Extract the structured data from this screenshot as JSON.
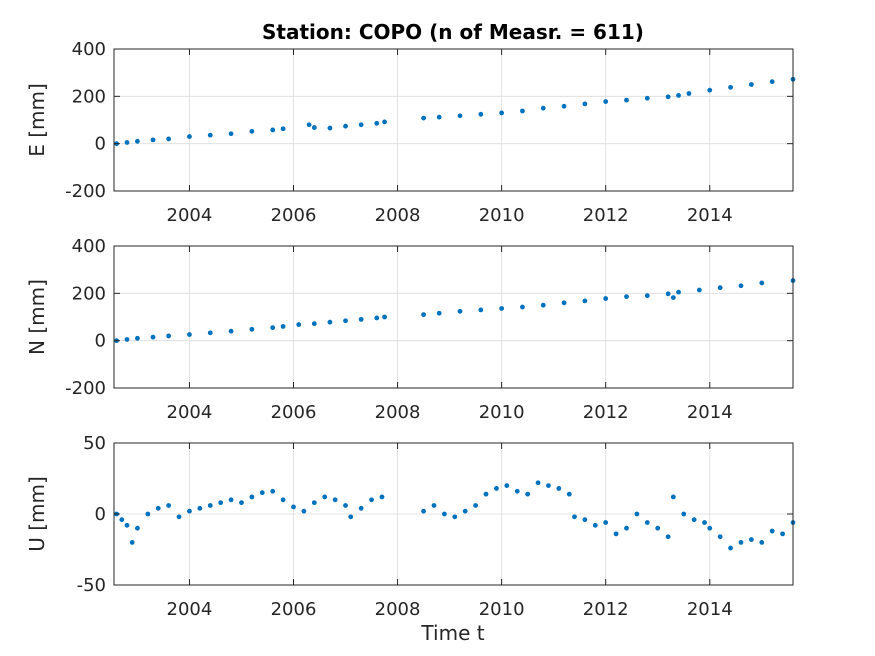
{
  "chart_data": {
    "title": "Station: COPO (n of Measr. = 611)",
    "xlabel": "Time t",
    "xlim": [
      2002.55,
      2015.6
    ],
    "xticks": [
      2004,
      2006,
      2008,
      2010,
      2012,
      2014
    ],
    "xtick_labels": [
      "2004",
      "2006",
      "2008",
      "2010",
      "2012",
      "2014"
    ],
    "grid": true,
    "marker_color": "#0072bd",
    "panels": [
      {
        "type": "scatter",
        "ylabel": "E [mm]",
        "ylim": [
          -200,
          400
        ],
        "yticks": [
          -200,
          0,
          200,
          400
        ],
        "ytick_labels": [
          "-200",
          "0",
          "200",
          "400"
        ],
        "points": [
          [
            2002.6,
            0
          ],
          [
            2002.8,
            5
          ],
          [
            2003.0,
            10
          ],
          [
            2003.3,
            16
          ],
          [
            2003.6,
            20
          ],
          [
            2004.0,
            30
          ],
          [
            2004.4,
            36
          ],
          [
            2004.8,
            42
          ],
          [
            2005.2,
            52
          ],
          [
            2005.6,
            58
          ],
          [
            2005.8,
            63
          ],
          [
            2006.3,
            80
          ],
          [
            2006.4,
            68
          ],
          [
            2006.7,
            66
          ],
          [
            2007.0,
            74
          ],
          [
            2007.3,
            80
          ],
          [
            2007.6,
            86
          ],
          [
            2007.75,
            92
          ],
          [
            2008.5,
            108
          ],
          [
            2008.8,
            112
          ],
          [
            2009.2,
            118
          ],
          [
            2009.6,
            124
          ],
          [
            2010.0,
            130
          ],
          [
            2010.4,
            138
          ],
          [
            2010.8,
            150
          ],
          [
            2011.2,
            158
          ],
          [
            2011.6,
            168
          ],
          [
            2012.0,
            178
          ],
          [
            2012.4,
            184
          ],
          [
            2012.8,
            192
          ],
          [
            2013.2,
            198
          ],
          [
            2013.4,
            204
          ],
          [
            2013.6,
            212
          ],
          [
            2014.0,
            226
          ],
          [
            2014.4,
            238
          ],
          [
            2014.8,
            250
          ],
          [
            2015.2,
            262
          ],
          [
            2015.6,
            272
          ]
        ]
      },
      {
        "type": "scatter",
        "ylabel": "N [mm]",
        "ylim": [
          -200,
          400
        ],
        "yticks": [
          -200,
          0,
          200,
          400
        ],
        "ytick_labels": [
          "-200",
          "0",
          "200",
          "400"
        ],
        "points": [
          [
            2002.6,
            0
          ],
          [
            2002.8,
            5
          ],
          [
            2003.0,
            10
          ],
          [
            2003.3,
            15
          ],
          [
            2003.6,
            20
          ],
          [
            2004.0,
            26
          ],
          [
            2004.4,
            33
          ],
          [
            2004.8,
            40
          ],
          [
            2005.2,
            48
          ],
          [
            2005.6,
            55
          ],
          [
            2005.8,
            60
          ],
          [
            2006.1,
            68
          ],
          [
            2006.4,
            72
          ],
          [
            2006.7,
            78
          ],
          [
            2007.0,
            84
          ],
          [
            2007.3,
            90
          ],
          [
            2007.6,
            96
          ],
          [
            2007.75,
            100
          ],
          [
            2008.5,
            110
          ],
          [
            2008.8,
            116
          ],
          [
            2009.2,
            124
          ],
          [
            2009.6,
            130
          ],
          [
            2010.0,
            136
          ],
          [
            2010.4,
            142
          ],
          [
            2010.8,
            150
          ],
          [
            2011.2,
            160
          ],
          [
            2011.6,
            168
          ],
          [
            2012.0,
            178
          ],
          [
            2012.4,
            186
          ],
          [
            2012.8,
            190
          ],
          [
            2013.2,
            198
          ],
          [
            2013.3,
            182
          ],
          [
            2013.4,
            205
          ],
          [
            2013.8,
            214
          ],
          [
            2014.2,
            224
          ],
          [
            2014.6,
            232
          ],
          [
            2015.0,
            244
          ],
          [
            2015.6,
            254
          ]
        ]
      },
      {
        "type": "scatter",
        "ylabel": "U [mm]",
        "ylim": [
          -50,
          50
        ],
        "yticks": [
          -50,
          0,
          50
        ],
        "ytick_labels": [
          "-50",
          "0",
          "50"
        ],
        "points": [
          [
            2002.6,
            0
          ],
          [
            2002.7,
            -4
          ],
          [
            2002.8,
            -8
          ],
          [
            2002.9,
            -20
          ],
          [
            2003.0,
            -10
          ],
          [
            2003.2,
            0
          ],
          [
            2003.4,
            4
          ],
          [
            2003.6,
            6
          ],
          [
            2003.8,
            -2
          ],
          [
            2004.0,
            2
          ],
          [
            2004.2,
            4
          ],
          [
            2004.4,
            6
          ],
          [
            2004.6,
            8
          ],
          [
            2004.8,
            10
          ],
          [
            2005.0,
            8
          ],
          [
            2005.2,
            12
          ],
          [
            2005.4,
            15
          ],
          [
            2005.6,
            16
          ],
          [
            2005.8,
            10
          ],
          [
            2006.0,
            5
          ],
          [
            2006.2,
            2
          ],
          [
            2006.4,
            8
          ],
          [
            2006.6,
            12
          ],
          [
            2006.8,
            10
          ],
          [
            2007.0,
            6
          ],
          [
            2007.1,
            -2
          ],
          [
            2007.3,
            4
          ],
          [
            2007.5,
            10
          ],
          [
            2007.7,
            12
          ],
          [
            2008.5,
            2
          ],
          [
            2008.7,
            6
          ],
          [
            2008.9,
            0
          ],
          [
            2009.1,
            -2
          ],
          [
            2009.3,
            2
          ],
          [
            2009.5,
            6
          ],
          [
            2009.7,
            14
          ],
          [
            2009.9,
            18
          ],
          [
            2010.1,
            20
          ],
          [
            2010.3,
            16
          ],
          [
            2010.5,
            14
          ],
          [
            2010.7,
            22
          ],
          [
            2010.9,
            20
          ],
          [
            2011.1,
            18
          ],
          [
            2011.3,
            14
          ],
          [
            2011.4,
            -2
          ],
          [
            2011.6,
            -4
          ],
          [
            2011.8,
            -8
          ],
          [
            2012.0,
            -6
          ],
          [
            2012.2,
            -14
          ],
          [
            2012.4,
            -10
          ],
          [
            2012.6,
            0
          ],
          [
            2012.8,
            -6
          ],
          [
            2013.0,
            -10
          ],
          [
            2013.2,
            -16
          ],
          [
            2013.3,
            12
          ],
          [
            2013.5,
            0
          ],
          [
            2013.7,
            -4
          ],
          [
            2013.9,
            -6
          ],
          [
            2014.0,
            -10
          ],
          [
            2014.2,
            -16
          ],
          [
            2014.4,
            -24
          ],
          [
            2014.6,
            -20
          ],
          [
            2014.8,
            -18
          ],
          [
            2015.0,
            -20
          ],
          [
            2015.2,
            -12
          ],
          [
            2015.4,
            -14
          ],
          [
            2015.6,
            -6
          ]
        ]
      }
    ]
  }
}
